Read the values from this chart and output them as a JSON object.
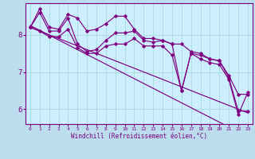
{
  "xlabel": "Windchill (Refroidissement éolien,°C)",
  "x_values": [
    0,
    1,
    2,
    3,
    4,
    5,
    6,
    7,
    8,
    9,
    10,
    11,
    12,
    13,
    14,
    15,
    16,
    17,
    18,
    19,
    20,
    21,
    22,
    23
  ],
  "y_main": [
    8.2,
    8.6,
    8.1,
    8.1,
    8.45,
    7.75,
    7.55,
    7.6,
    7.85,
    8.05,
    8.05,
    8.1,
    7.85,
    7.8,
    7.85,
    7.75,
    6.5,
    7.5,
    7.45,
    7.35,
    7.3,
    6.85,
    5.95,
    5.95
  ],
  "y_upper": [
    8.2,
    8.7,
    8.2,
    8.15,
    8.55,
    8.45,
    8.1,
    8.15,
    8.3,
    8.5,
    8.5,
    8.15,
    7.9,
    7.9,
    7.85,
    7.75,
    7.75,
    7.55,
    7.5,
    7.35,
    7.3,
    6.9,
    6.4,
    6.4
  ],
  "y_lower": [
    8.2,
    8.1,
    7.95,
    7.95,
    8.15,
    7.65,
    7.5,
    7.5,
    7.7,
    7.75,
    7.75,
    7.9,
    7.7,
    7.7,
    7.7,
    7.45,
    6.5,
    7.5,
    7.35,
    7.25,
    7.2,
    6.8,
    5.85,
    6.45
  ],
  "y_trend1": [
    8.25,
    8.12,
    7.99,
    7.86,
    7.73,
    7.6,
    7.47,
    7.34,
    7.21,
    7.08,
    6.95,
    6.82,
    6.69,
    6.56,
    6.43,
    6.3,
    6.17,
    6.04,
    5.91,
    5.78,
    5.65,
    5.52,
    5.39,
    5.26
  ],
  "y_trend2": [
    8.2,
    8.1,
    8.0,
    7.9,
    7.8,
    7.7,
    7.6,
    7.5,
    7.4,
    7.3,
    7.2,
    7.1,
    7.0,
    6.9,
    6.8,
    6.7,
    6.6,
    6.5,
    6.4,
    6.3,
    6.2,
    6.1,
    6.0,
    5.9
  ],
  "line_color": "#800080",
  "bg_color": "#cceeff",
  "grid_color": "#aadddd",
  "axis_bg": "#bbddee",
  "ylim": [
    5.6,
    8.85
  ],
  "xlim": [
    -0.5,
    23.5
  ],
  "yticks": [
    6,
    7,
    8
  ],
  "xticks": [
    0,
    1,
    2,
    3,
    4,
    5,
    6,
    7,
    8,
    9,
    10,
    11,
    12,
    13,
    14,
    15,
    16,
    17,
    18,
    19,
    20,
    21,
    22,
    23
  ]
}
